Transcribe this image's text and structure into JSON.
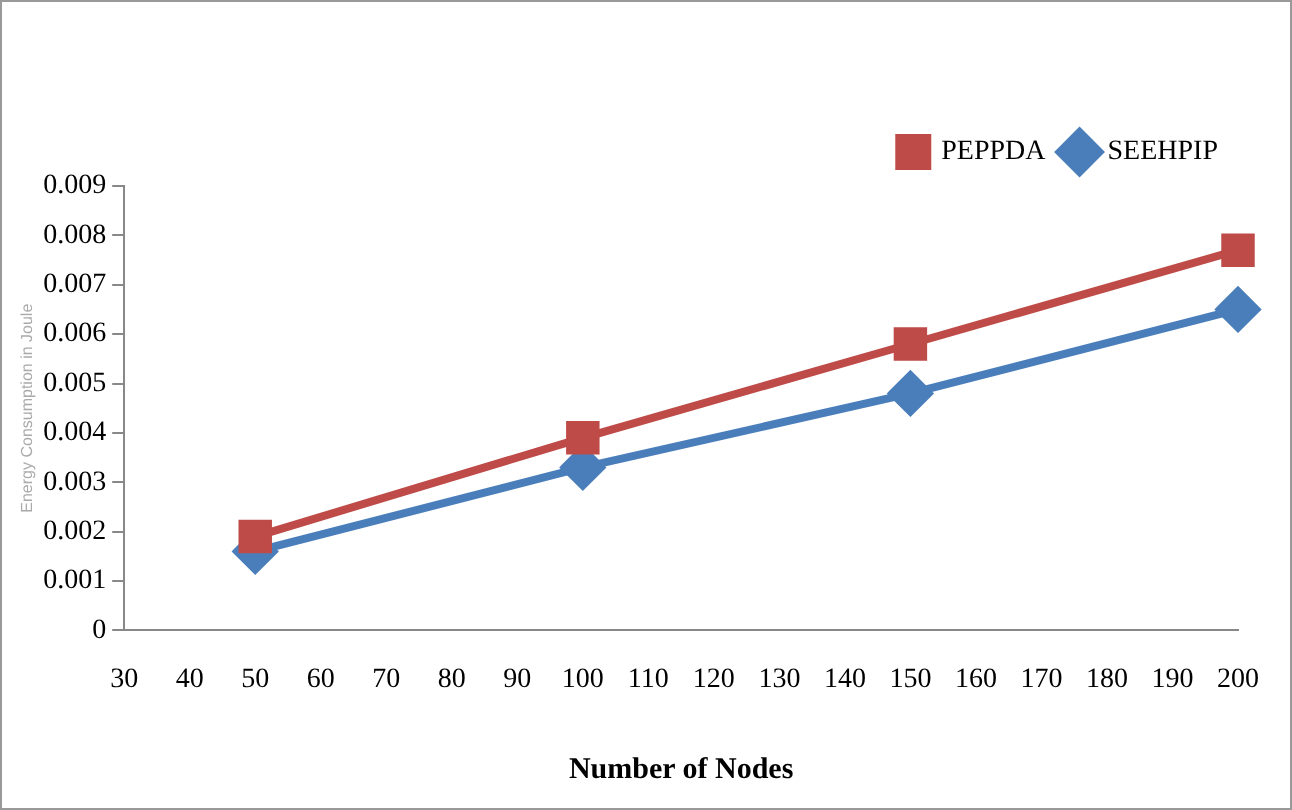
{
  "chart_data": {
    "type": "line",
    "xlabel": "Number of Nodes",
    "ylabel": "Energy Consumption in Joule",
    "x": [
      50,
      100,
      150,
      200
    ],
    "series": [
      {
        "name": "SEEHPIP",
        "color": "#4a7ebb",
        "values": [
          0.0016,
          0.0033,
          0.0048,
          0.0065
        ],
        "marker": "diamond"
      },
      {
        "name": "PEPPDA",
        "color": "#be4b48",
        "values": [
          0.0019,
          0.0039,
          0.0058,
          0.0077
        ],
        "marker": "square"
      }
    ],
    "xlim": [
      30,
      200
    ],
    "xticks": [
      30,
      40,
      50,
      60,
      70,
      80,
      90,
      100,
      110,
      120,
      130,
      140,
      150,
      160,
      170,
      180,
      190,
      200
    ],
    "ylim": [
      0,
      0.009
    ],
    "yticks": [
      0,
      0.001,
      0.002,
      0.003,
      0.004,
      0.005,
      0.006,
      0.007,
      0.008,
      0.009
    ],
    "grid": false,
    "legend": "top right",
    "line_style": "solid"
  }
}
